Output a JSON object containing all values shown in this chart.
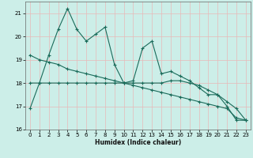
{
  "xlabel": "Humidex (Indice chaleur)",
  "xlim": [
    -0.5,
    23.5
  ],
  "ylim": [
    16,
    21.5
  ],
  "yticks": [
    16,
    17,
    18,
    19,
    20,
    21
  ],
  "xticks": [
    0,
    1,
    2,
    3,
    4,
    5,
    6,
    7,
    8,
    9,
    10,
    11,
    12,
    13,
    14,
    15,
    16,
    17,
    18,
    19,
    20,
    21,
    22,
    23
  ],
  "bg_color": "#cceee8",
  "grid_color": "#e8b8b8",
  "line_color": "#1a6b5a",
  "series1": [
    16.9,
    18.0,
    19.2,
    20.3,
    21.2,
    20.3,
    19.8,
    20.1,
    20.4,
    18.8,
    18.0,
    18.1,
    19.5,
    19.8,
    18.4,
    18.5,
    18.3,
    18.1,
    17.8,
    17.5,
    17.5,
    17.0,
    16.4,
    16.4
  ],
  "series2": [
    18.0,
    18.0,
    18.0,
    18.0,
    18.0,
    18.0,
    18.0,
    18.0,
    18.0,
    18.0,
    18.0,
    18.0,
    18.0,
    18.0,
    18.0,
    18.1,
    18.1,
    18.0,
    17.9,
    17.7,
    17.5,
    17.2,
    16.9,
    16.4
  ],
  "series3": [
    19.2,
    19.0,
    18.9,
    18.8,
    18.6,
    18.5,
    18.4,
    18.3,
    18.2,
    18.1,
    18.0,
    17.9,
    17.8,
    17.7,
    17.6,
    17.5,
    17.4,
    17.3,
    17.2,
    17.1,
    17.0,
    16.9,
    16.5,
    16.4
  ]
}
